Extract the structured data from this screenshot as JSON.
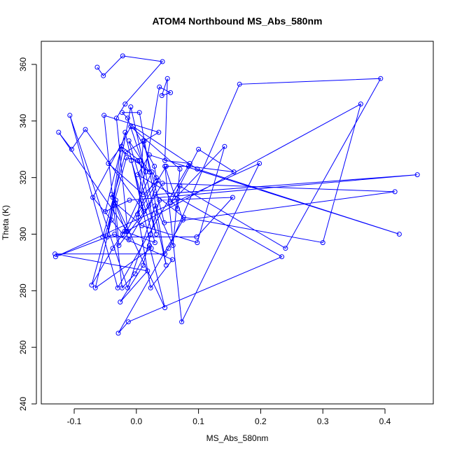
{
  "chart_data": {
    "type": "line",
    "title": "ATOM4 Northbound MS_Abs_580nm",
    "xlabel": "MS_Abs_580nm",
    "ylabel": "Theta (K)",
    "xlim": [
      -0.15,
      0.46
    ],
    "ylim": [
      240,
      368
    ],
    "xticks": [
      -0.1,
      0.0,
      0.1,
      0.2,
      0.3,
      0.4
    ],
    "xtick_labels": [
      "-0.1",
      "0.0",
      "0.1",
      "0.2",
      "0.3",
      "0.4"
    ],
    "yticks": [
      240,
      260,
      280,
      300,
      320,
      340,
      360
    ],
    "ytick_labels": [
      "240",
      "260",
      "280",
      "300",
      "320",
      "340",
      "360"
    ],
    "grid": false,
    "line_color": "#0000ff",
    "marker": "open-circle",
    "series": [
      {
        "x": [
          -0.063,
          -0.053,
          -0.022,
          0.042,
          -0.018,
          -0.032,
          -0.014,
          -0.125,
          -0.104,
          -0.082,
          0.012,
          -0.008,
          0.03,
          -0.019,
          -0.038,
          -0.072,
          -0.016,
          0.002,
          0.015,
          -0.014,
          -0.023,
          0.005,
          0.048,
          -0.009,
          -0.047,
          -0.025,
          0.021,
          -0.012,
          0.032,
          0.005,
          -0.024,
          -0.045,
          0.011,
          0.035,
          0.02,
          -0.028,
          -0.034,
          0.009,
          0.098,
          0.142,
          0.055,
          0.1,
          0.157,
          0.084,
          0.048,
          0.002,
          0.037,
          0.055,
          0.041,
          0.05,
          0.046,
          0.086,
          -0.03,
          -0.107,
          -0.014,
          0.03,
          0.059,
          0.07,
          -0.009,
          -0.07,
          -0.04,
          -0.022,
          0.025,
          0.066,
          0.07,
          0.24,
          0.393,
          0.166,
          0.052,
          0.046,
          -0.131,
          0.018,
          -0.026,
          0.011,
          0.023,
          0.037,
          0.155,
          0.097,
          -0.054,
          -0.017,
          0.013,
          0.036,
          -0.052,
          -0.023,
          -0.002,
          0.021,
          0.046,
          -0.04,
          -0.033,
          -0.066,
          0.024,
          -0.018,
          -0.05,
          -0.011,
          0.452,
          0.03,
          0.076,
          0.3,
          0.361,
          -0.016,
          0.032,
          0.029,
          -0.005,
          0.098,
          0.423,
          0.021,
          0.002,
          0.234,
          -0.013,
          -0.029,
          0.075,
          0.046,
          0.073,
          0.198,
          -0.13,
          -0.035,
          0.058,
          0.023,
          0.003,
          0.011,
          0.045,
          0.416,
          0.042,
          -0.012,
          -0.038
        ],
        "y": [
          359,
          356,
          363,
          361,
          346,
          341,
          301,
          336,
          330,
          337,
          308,
          326,
          297,
          301,
          295,
          282,
          327,
          326,
          322,
          341,
          343,
          343,
          289,
          345,
          299,
          330,
          322,
          333,
          300,
          326,
          331,
          325,
          314,
          319,
          310,
          296,
          311,
          303,
          297,
          331,
          311,
          330,
          322,
          324,
          324,
          307,
          352,
          350,
          349,
          355,
          326,
          325,
          281,
          342,
          281,
          310,
          296,
          323,
          338,
          313,
          305,
          300,
          322,
          309,
          317,
          295,
          355,
          353,
          295,
          293,
          293,
          287,
          276,
          289,
          300,
          312,
          313,
          299,
          299,
          329,
          333,
          336,
          342,
          281,
          286,
          296,
          274,
          314,
          312,
          281,
          295,
          336,
          308,
          312,
          321,
          314,
          306,
          297,
          346,
          301,
          320,
          324,
          338,
          323,
          300,
          328,
          321,
          292,
          269,
          265,
          305,
          324,
          269,
          325,
          292,
          300,
          291,
          281,
          306,
          333,
          304,
          315,
          318,
          298,
          313
        ]
      }
    ]
  }
}
